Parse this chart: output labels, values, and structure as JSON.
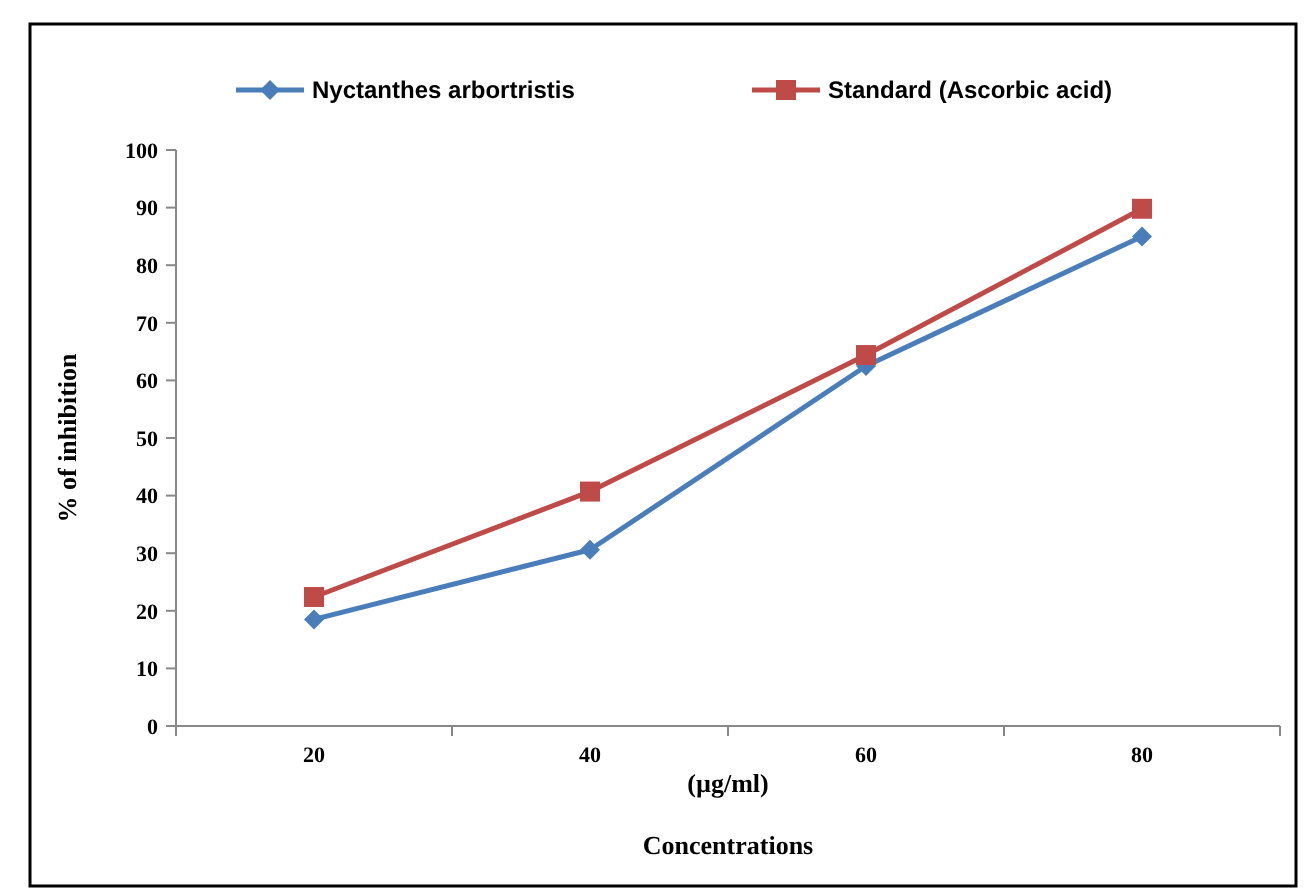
{
  "chart_data": {
    "type": "line",
    "categories": [
      "20",
      "40",
      "60",
      "80"
    ],
    "series": [
      {
        "name": "Nyctanthes arbortristis",
        "color": "#4a7ebb",
        "values": [
          18.5,
          30.6,
          62.5,
          85
        ],
        "marker": "diamond"
      },
      {
        "name": "Standard (Ascorbic acid)",
        "color": "#be4b48",
        "values": [
          22.4,
          40.7,
          64.4,
          89.8
        ],
        "marker": "square"
      }
    ],
    "ylabel": "% of inhibition",
    "xlabel": "(µg/ml)",
    "annotations": [
      "Concentrations"
    ],
    "ylim": [
      0,
      100
    ],
    "yticks": [
      0,
      10,
      20,
      30,
      40,
      50,
      60,
      70,
      80,
      90,
      100
    ],
    "grid": false,
    "legend": "top"
  }
}
